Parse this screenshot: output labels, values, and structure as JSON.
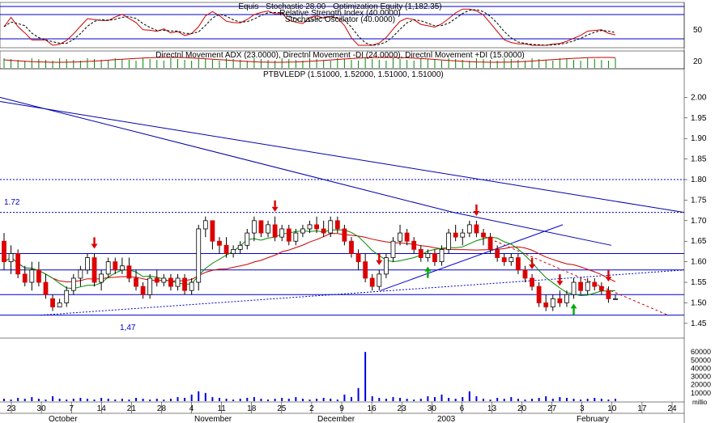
{
  "panels": {
    "stochastic": {
      "title_line1": "Equis - Stochastic 28.00 - Optimization Equity (1,182.35)",
      "title_line2": "Relative Strength Index (40.0000)",
      "title_line3": "Stochastic Oscillator (40.0000)",
      "axis_label": "50"
    },
    "adx": {
      "title": "Directnl Movement ADX (23.0000), Directnl Movement -DI (24.0000), Directnl Movement +DI (15.0000)",
      "axis_label": "20"
    },
    "price": {
      "title": "PTBVLEDP (1.51000, 1.52000, 1.51000, 1.51000)",
      "annotations": [
        {
          "text": "1.72",
          "y": 1.72
        },
        {
          "text": "1,47",
          "y": 1.47
        }
      ]
    },
    "volume": {
      "unit_label": "millio"
    }
  },
  "chart_data": {
    "type": "candlestick",
    "title": "PTBVLEDP (1.51000, 1.52000, 1.51000, 1.51000)",
    "y_ticks": [
      "2.00",
      "1.95",
      "1.90",
      "1.85",
      "1.80",
      "1.75",
      "1.70",
      "1.65",
      "1.60",
      "1.55",
      "1.50",
      "1.45"
    ],
    "ylim": [
      1.43,
      2.05
    ],
    "volume_ticks": [
      "60000",
      "50000",
      "40000",
      "30000",
      "20000",
      "10000"
    ],
    "x_day_labels": [
      "23",
      "30",
      "7",
      "14",
      "21",
      "28",
      "4",
      "11",
      "18",
      "25",
      "2",
      "9",
      "16",
      "23",
      "30",
      "6",
      "13",
      "20",
      "27",
      "3",
      "10",
      "17",
      "24"
    ],
    "x_month_labels": [
      "October",
      "November",
      "December",
      "2003",
      "February"
    ],
    "horizontal_levels": [
      1.8,
      1.72,
      1.62,
      1.58,
      1.52,
      1.47
    ],
    "candles": [
      {
        "o": 1.65,
        "h": 1.67,
        "l": 1.58,
        "c": 1.6
      },
      {
        "o": 1.6,
        "h": 1.64,
        "l": 1.57,
        "c": 1.62
      },
      {
        "o": 1.62,
        "h": 1.63,
        "l": 1.56,
        "c": 1.57
      },
      {
        "o": 1.57,
        "h": 1.59,
        "l": 1.54,
        "c": 1.55
      },
      {
        "o": 1.55,
        "h": 1.6,
        "l": 1.53,
        "c": 1.58
      },
      {
        "o": 1.58,
        "h": 1.6,
        "l": 1.54,
        "c": 1.55
      },
      {
        "o": 1.55,
        "h": 1.57,
        "l": 1.51,
        "c": 1.52
      },
      {
        "o": 1.51,
        "h": 1.52,
        "l": 1.48,
        "c": 1.49
      },
      {
        "o": 1.49,
        "h": 1.51,
        "l": 1.49,
        "c": 1.5
      },
      {
        "o": 1.5,
        "h": 1.54,
        "l": 1.49,
        "c": 1.53
      },
      {
        "o": 1.53,
        "h": 1.57,
        "l": 1.52,
        "c": 1.56
      },
      {
        "o": 1.56,
        "h": 1.59,
        "l": 1.54,
        "c": 1.58
      },
      {
        "o": 1.58,
        "h": 1.62,
        "l": 1.57,
        "c": 1.61
      },
      {
        "o": 1.61,
        "h": 1.62,
        "l": 1.54,
        "c": 1.55
      },
      {
        "o": 1.55,
        "h": 1.58,
        "l": 1.53,
        "c": 1.57
      },
      {
        "o": 1.57,
        "h": 1.61,
        "l": 1.56,
        "c": 1.6
      },
      {
        "o": 1.6,
        "h": 1.61,
        "l": 1.57,
        "c": 1.58
      },
      {
        "o": 1.58,
        "h": 1.61,
        "l": 1.57,
        "c": 1.59
      },
      {
        "o": 1.59,
        "h": 1.61,
        "l": 1.55,
        "c": 1.56
      },
      {
        "o": 1.56,
        "h": 1.58,
        "l": 1.53,
        "c": 1.54
      },
      {
        "o": 1.54,
        "h": 1.55,
        "l": 1.51,
        "c": 1.52
      },
      {
        "o": 1.52,
        "h": 1.57,
        "l": 1.51,
        "c": 1.56
      },
      {
        "o": 1.56,
        "h": 1.58,
        "l": 1.54,
        "c": 1.55
      },
      {
        "o": 1.55,
        "h": 1.57,
        "l": 1.54,
        "c": 1.56
      },
      {
        "o": 1.56,
        "h": 1.57,
        "l": 1.53,
        "c": 1.54
      },
      {
        "o": 1.54,
        "h": 1.57,
        "l": 1.53,
        "c": 1.56
      },
      {
        "o": 1.56,
        "h": 1.57,
        "l": 1.52,
        "c": 1.53
      },
      {
        "o": 1.53,
        "h": 1.56,
        "l": 1.52,
        "c": 1.55
      },
      {
        "o": 1.55,
        "h": 1.69,
        "l": 1.53,
        "c": 1.68
      },
      {
        "o": 1.68,
        "h": 1.71,
        "l": 1.66,
        "c": 1.7
      },
      {
        "o": 1.7,
        "h": 1.7,
        "l": 1.63,
        "c": 1.65
      },
      {
        "o": 1.65,
        "h": 1.66,
        "l": 1.62,
        "c": 1.64
      },
      {
        "o": 1.64,
        "h": 1.66,
        "l": 1.61,
        "c": 1.62
      },
      {
        "o": 1.62,
        "h": 1.64,
        "l": 1.61,
        "c": 1.63
      },
      {
        "o": 1.63,
        "h": 1.65,
        "l": 1.62,
        "c": 1.64
      },
      {
        "o": 1.64,
        "h": 1.68,
        "l": 1.63,
        "c": 1.67
      },
      {
        "o": 1.67,
        "h": 1.71,
        "l": 1.65,
        "c": 1.7
      },
      {
        "o": 1.7,
        "h": 1.7,
        "l": 1.66,
        "c": 1.67
      },
      {
        "o": 1.67,
        "h": 1.7,
        "l": 1.66,
        "c": 1.69
      },
      {
        "o": 1.69,
        "h": 1.71,
        "l": 1.65,
        "c": 1.66
      },
      {
        "o": 1.66,
        "h": 1.69,
        "l": 1.65,
        "c": 1.68
      },
      {
        "o": 1.68,
        "h": 1.69,
        "l": 1.64,
        "c": 1.65
      },
      {
        "o": 1.65,
        "h": 1.68,
        "l": 1.64,
        "c": 1.67
      },
      {
        "o": 1.67,
        "h": 1.69,
        "l": 1.66,
        "c": 1.68
      },
      {
        "o": 1.68,
        "h": 1.7,
        "l": 1.67,
        "c": 1.69
      },
      {
        "o": 1.69,
        "h": 1.71,
        "l": 1.67,
        "c": 1.68
      },
      {
        "o": 1.68,
        "h": 1.7,
        "l": 1.66,
        "c": 1.67
      },
      {
        "o": 1.67,
        "h": 1.71,
        "l": 1.66,
        "c": 1.7
      },
      {
        "o": 1.7,
        "h": 1.71,
        "l": 1.67,
        "c": 1.68
      },
      {
        "o": 1.68,
        "h": 1.69,
        "l": 1.64,
        "c": 1.65
      },
      {
        "o": 1.65,
        "h": 1.66,
        "l": 1.61,
        "c": 1.62
      },
      {
        "o": 1.62,
        "h": 1.63,
        "l": 1.58,
        "c": 1.6
      },
      {
        "o": 1.6,
        "h": 1.62,
        "l": 1.55,
        "c": 1.56
      },
      {
        "o": 1.56,
        "h": 1.57,
        "l": 1.53,
        "c": 1.54
      },
      {
        "o": 1.54,
        "h": 1.58,
        "l": 1.53,
        "c": 1.57
      },
      {
        "o": 1.57,
        "h": 1.62,
        "l": 1.56,
        "c": 1.61
      },
      {
        "o": 1.61,
        "h": 1.66,
        "l": 1.6,
        "c": 1.65
      },
      {
        "o": 1.65,
        "h": 1.69,
        "l": 1.64,
        "c": 1.67
      },
      {
        "o": 1.67,
        "h": 1.68,
        "l": 1.64,
        "c": 1.65
      },
      {
        "o": 1.65,
        "h": 1.66,
        "l": 1.62,
        "c": 1.63
      },
      {
        "o": 1.63,
        "h": 1.64,
        "l": 1.6,
        "c": 1.61
      },
      {
        "o": 1.61,
        "h": 1.63,
        "l": 1.6,
        "c": 1.62
      },
      {
        "o": 1.62,
        "h": 1.63,
        "l": 1.59,
        "c": 1.6
      },
      {
        "o": 1.6,
        "h": 1.64,
        "l": 1.59,
        "c": 1.63
      },
      {
        "o": 1.63,
        "h": 1.68,
        "l": 1.62,
        "c": 1.67
      },
      {
        "o": 1.67,
        "h": 1.69,
        "l": 1.65,
        "c": 1.66
      },
      {
        "o": 1.66,
        "h": 1.68,
        "l": 1.64,
        "c": 1.67
      },
      {
        "o": 1.67,
        "h": 1.7,
        "l": 1.66,
        "c": 1.69
      },
      {
        "o": 1.69,
        "h": 1.7,
        "l": 1.66,
        "c": 1.67
      },
      {
        "o": 1.67,
        "h": 1.68,
        "l": 1.64,
        "c": 1.66
      },
      {
        "o": 1.66,
        "h": 1.67,
        "l": 1.62,
        "c": 1.63
      },
      {
        "o": 1.63,
        "h": 1.64,
        "l": 1.6,
        "c": 1.61
      },
      {
        "o": 1.61,
        "h": 1.62,
        "l": 1.59,
        "c": 1.6
      },
      {
        "o": 1.6,
        "h": 1.62,
        "l": 1.59,
        "c": 1.61
      },
      {
        "o": 1.61,
        "h": 1.62,
        "l": 1.57,
        "c": 1.58
      },
      {
        "o": 1.58,
        "h": 1.59,
        "l": 1.55,
        "c": 1.56
      },
      {
        "o": 1.56,
        "h": 1.57,
        "l": 1.53,
        "c": 1.54
      },
      {
        "o": 1.54,
        "h": 1.55,
        "l": 1.49,
        "c": 1.5
      },
      {
        "o": 1.5,
        "h": 1.52,
        "l": 1.48,
        "c": 1.49
      },
      {
        "o": 1.49,
        "h": 1.52,
        "l": 1.48,
        "c": 1.51
      },
      {
        "o": 1.51,
        "h": 1.53,
        "l": 1.49,
        "c": 1.5
      },
      {
        "o": 1.5,
        "h": 1.53,
        "l": 1.49,
        "c": 1.52
      },
      {
        "o": 1.52,
        "h": 1.56,
        "l": 1.51,
        "c": 1.55
      },
      {
        "o": 1.55,
        "h": 1.56,
        "l": 1.52,
        "c": 1.53
      },
      {
        "o": 1.53,
        "h": 1.56,
        "l": 1.52,
        "c": 1.55
      },
      {
        "o": 1.55,
        "h": 1.56,
        "l": 1.53,
        "c": 1.54
      },
      {
        "o": 1.54,
        "h": 1.55,
        "l": 1.52,
        "c": 1.53
      },
      {
        "o": 1.53,
        "h": 1.54,
        "l": 1.5,
        "c": 1.51
      },
      {
        "o": 1.51,
        "h": 1.52,
        "l": 1.51,
        "c": 1.51
      }
    ],
    "sell_signal_indices": [
      13,
      39,
      54,
      68,
      76,
      80,
      87
    ],
    "buy_signal_indices": [
      61,
      82
    ],
    "volume": [
      3,
      2,
      4,
      3,
      5,
      3,
      2,
      6,
      3,
      2,
      3,
      4,
      3,
      2,
      4,
      3,
      2,
      3,
      2,
      4,
      3,
      2,
      3,
      2,
      3,
      5,
      4,
      8,
      12,
      10,
      5,
      4,
      3,
      2,
      3,
      4,
      5,
      3,
      2,
      3,
      4,
      3,
      5,
      3,
      2,
      3,
      4,
      3,
      2,
      8,
      5,
      16,
      60,
      6,
      4,
      3,
      5,
      4,
      3,
      2,
      3,
      6,
      5,
      8,
      4,
      3,
      5,
      12,
      6,
      3,
      2,
      4,
      3,
      5,
      3,
      2,
      3,
      4,
      6,
      3,
      5,
      4,
      3,
      2,
      3,
      4,
      3,
      2,
      3
    ],
    "volume_ylim": [
      0,
      70000
    ]
  }
}
